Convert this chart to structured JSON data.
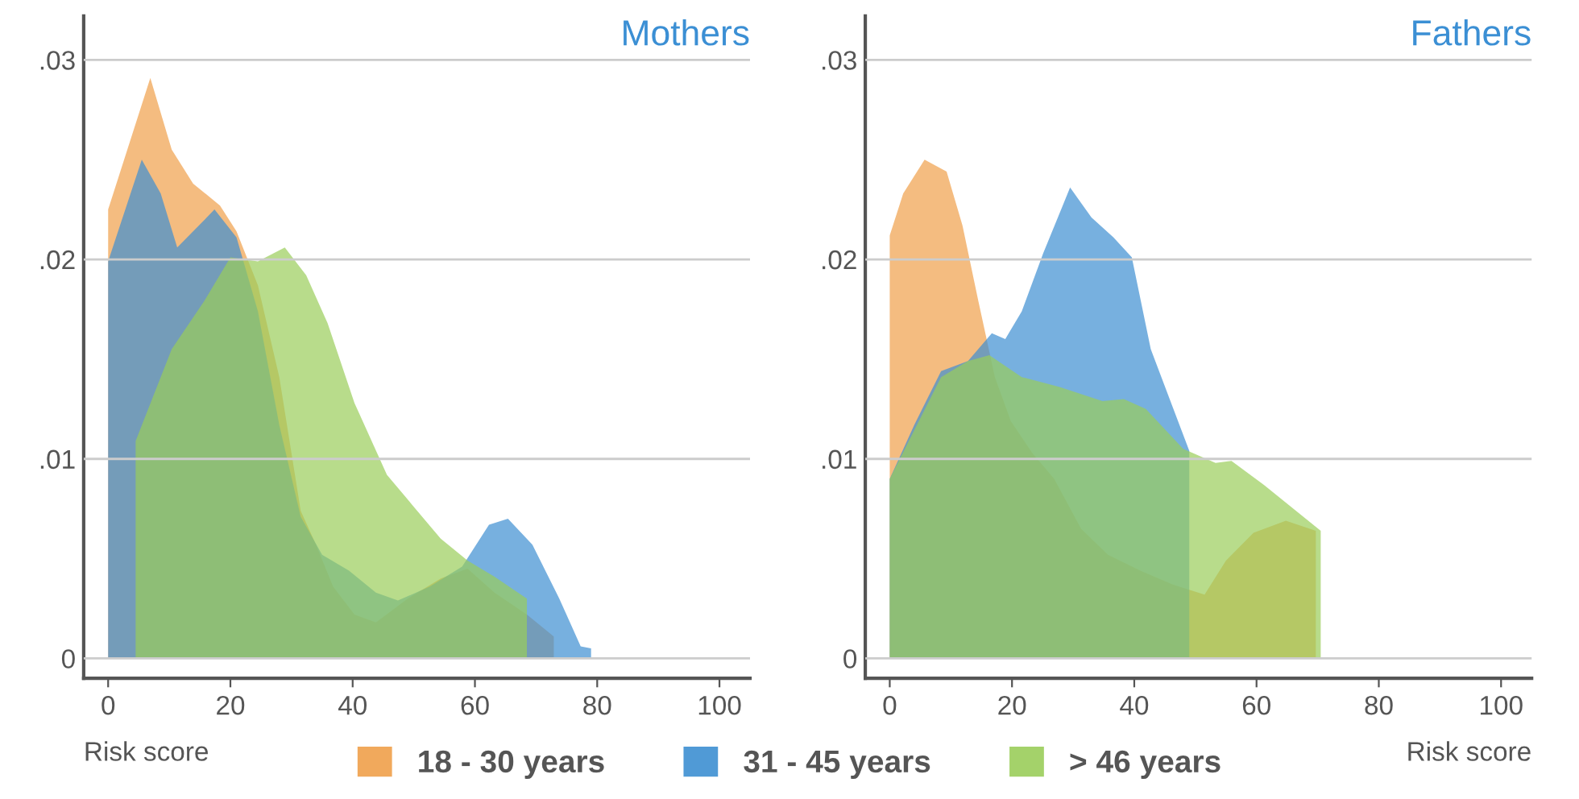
{
  "chart_data": [
    {
      "type": "area",
      "title": "Mothers",
      "xlabel": "Risk score",
      "xlim": [
        -4,
        105
      ],
      "ylim": [
        -0.001,
        0.0322
      ],
      "xticks": [
        0,
        20,
        40,
        60,
        80,
        100
      ],
      "yticks": [
        {
          "value": 0,
          "label": "0"
        },
        {
          "value": 0.01,
          "label": ".01"
        },
        {
          "value": 0.02,
          "label": ".02"
        },
        {
          "value": 0.03,
          "label": ".03"
        }
      ],
      "grid": "y",
      "legend": "bottom",
      "series": [
        {
          "name": "18 - 30 years",
          "color": "#f0a04a",
          "x": [
            0,
            6.9,
            10.4,
            13.9,
            18.3,
            21,
            24.5,
            28,
            31.5,
            34,
            36.8,
            40.3,
            43.8,
            49,
            54.4,
            58.8,
            63.2,
            68.5,
            72.9
          ],
          "values": [
            0.0225,
            0.0291,
            0.0255,
            0.0238,
            0.0227,
            0.0214,
            0.0187,
            0.0141,
            0.0074,
            0.0057,
            0.0036,
            0.0022,
            0.0018,
            0.003,
            0.004,
            0.0045,
            0.0033,
            0.0022,
            0.0011
          ]
        },
        {
          "name": "31 - 45 years",
          "color": "#3d8fd1",
          "x": [
            0,
            5.5,
            8.6,
            11.3,
            13.9,
            17.4,
            21,
            24.5,
            28,
            31.5,
            35,
            39.4,
            43.8,
            47.4,
            52.6,
            57.9,
            62.3,
            65.4,
            69.4,
            73.8,
            77.3,
            79
          ],
          "values": [
            0.0199,
            0.025,
            0.0233,
            0.0206,
            0.0214,
            0.0225,
            0.0211,
            0.0174,
            0.0117,
            0.0071,
            0.0052,
            0.0044,
            0.0033,
            0.0029,
            0.0036,
            0.0046,
            0.0067,
            0.007,
            0.0057,
            0.003,
            0.0006,
            0.0005
          ]
        },
        {
          "name": "> 46 years",
          "color": "#9acd5a",
          "x": [
            4.5,
            10.4,
            15.7,
            20,
            24.5,
            28.9,
            32.4,
            35.9,
            40.3,
            45.6,
            50,
            54.4,
            58.8,
            63.2,
            68.5
          ],
          "values": [
            0.0109,
            0.0155,
            0.0179,
            0.0201,
            0.0199,
            0.0206,
            0.0192,
            0.0168,
            0.0128,
            0.0092,
            0.0076,
            0.006,
            0.0049,
            0.0041,
            0.003
          ]
        }
      ]
    },
    {
      "type": "area",
      "title": "Fathers",
      "xlabel": "Risk score",
      "xlim": [
        -4,
        105
      ],
      "ylim": [
        -0.001,
        0.0322
      ],
      "xticks": [
        0,
        20,
        40,
        60,
        80,
        100
      ],
      "yticks": [
        {
          "value": 0,
          "label": "0"
        },
        {
          "value": 0.01,
          "label": ".01"
        },
        {
          "value": 0.02,
          "label": ".02"
        },
        {
          "value": 0.03,
          "label": ".03"
        }
      ],
      "grid": "y",
      "series": [
        {
          "color": "#f0a04a",
          "x": [
            0,
            2.2,
            5.7,
            9.3,
            11.9,
            14.5,
            17.2,
            19.8,
            23.3,
            26.9,
            31.3,
            35.7,
            41,
            46.3,
            51.5,
            55,
            59.5,
            64.8,
            69.7
          ],
          "values": [
            0.0212,
            0.0233,
            0.025,
            0.0244,
            0.0217,
            0.0179,
            0.0141,
            0.0119,
            0.0103,
            0.009,
            0.0065,
            0.0052,
            0.0044,
            0.0037,
            0.0032,
            0.0049,
            0.0063,
            0.0069,
            0.0064
          ]
        },
        {
          "color": "#3d8fd1",
          "x": [
            0,
            4,
            8.4,
            12.8,
            16.7,
            18.9,
            21.6,
            25.1,
            29.5,
            33,
            36.6,
            39.6,
            42.7,
            49
          ],
          "values": [
            0.009,
            0.0117,
            0.0144,
            0.0149,
            0.0163,
            0.016,
            0.0174,
            0.0203,
            0.0236,
            0.0221,
            0.0211,
            0.0201,
            0.0155,
            0.0104
          ]
        },
        {
          "color": "#9acd5a",
          "x": [
            0,
            8.4,
            12.8,
            16.3,
            21.6,
            27.8,
            34.8,
            38.3,
            41.9,
            48,
            53.3,
            55.9,
            61.2,
            70.5
          ],
          "values": [
            0.009,
            0.0141,
            0.0149,
            0.0152,
            0.0141,
            0.0136,
            0.0129,
            0.013,
            0.0125,
            0.0105,
            0.0098,
            0.0099,
            0.0087,
            0.0064
          ]
        }
      ]
    }
  ]
}
